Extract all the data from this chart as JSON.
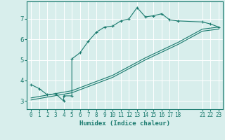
{
  "title": "",
  "xlabel": "Humidex (Indice chaleur)",
  "bg_color": "#d8eeec",
  "line_color": "#1a7a6e",
  "grid_color": "#ffffff",
  "xlim": [
    -0.5,
    23.5
  ],
  "ylim": [
    2.6,
    7.85
  ],
  "xticks": [
    0,
    1,
    2,
    3,
    4,
    5,
    6,
    7,
    8,
    9,
    10,
    11,
    12,
    13,
    14,
    15,
    16,
    17,
    18,
    21,
    22,
    23
  ],
  "yticks": [
    3,
    4,
    5,
    6,
    7
  ],
  "line1_x": [
    0,
    1,
    2,
    3,
    4,
    4,
    5,
    5,
    6,
    7,
    8,
    9,
    10,
    11,
    12,
    13,
    14,
    15,
    16,
    17,
    18,
    21,
    22,
    23
  ],
  "line1_y": [
    3.8,
    3.6,
    3.3,
    3.35,
    3.0,
    3.25,
    3.25,
    5.05,
    5.35,
    5.9,
    6.35,
    6.6,
    6.65,
    6.9,
    7.0,
    7.55,
    7.1,
    7.15,
    7.25,
    6.95,
    6.9,
    6.85,
    6.75,
    6.6
  ],
  "line2_x": [
    0,
    5,
    10,
    14,
    18,
    21,
    23
  ],
  "line2_y": [
    3.15,
    3.5,
    4.25,
    5.1,
    5.85,
    6.5,
    6.6
  ],
  "line3_x": [
    0,
    5,
    10,
    14,
    18,
    21,
    23
  ],
  "line3_y": [
    3.05,
    3.4,
    4.15,
    5.0,
    5.75,
    6.4,
    6.5
  ],
  "xlabel_fontsize": 6.5,
  "tick_fontsize": 5.5,
  "ytick_fontsize": 6.5
}
